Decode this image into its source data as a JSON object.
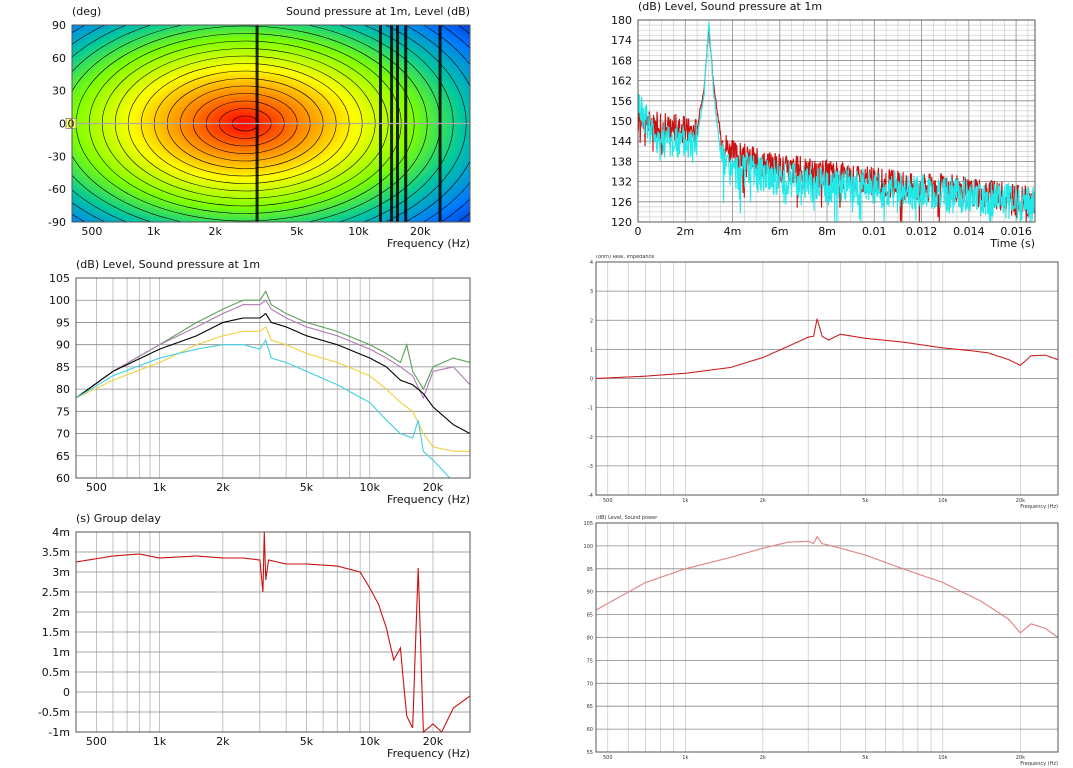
{
  "chart_data": [
    {
      "type": "heatmap",
      "title": "Sound pressure at 1m, Level  (dB)",
      "ylabel": "(deg)",
      "xlabel": "Frequency  (Hz)",
      "x_scale": "log",
      "xlim": [
        400,
        35000
      ],
      "ylim": [
        -90,
        90
      ],
      "x_ticks": [
        {
          "v": 500,
          "label": "500"
        },
        {
          "v": 1000,
          "label": "1k"
        },
        {
          "v": 2000,
          "label": "2k"
        },
        {
          "v": 5000,
          "label": "5k"
        },
        {
          "v": 10000,
          "label": "10k"
        },
        {
          "v": 20000,
          "label": "20k"
        }
      ],
      "y_ticks": [
        {
          "v": 90,
          "label": "90"
        },
        {
          "v": 60,
          "label": "60"
        },
        {
          "v": 30,
          "label": "30"
        },
        {
          "v": 0,
          "label": "0"
        },
        {
          "v": -30,
          "label": "-30"
        },
        {
          "v": -60,
          "label": "-60"
        },
        {
          "v": -90,
          "label": "-90"
        }
      ],
      "cursor": {
        "angle": 0,
        "label": "0"
      },
      "peak": {
        "freq": 2800,
        "angle": 0
      },
      "colors": [
        "#ff0000",
        "#ff8c00",
        "#ffff00",
        "#7fff00",
        "#00c8a0",
        "#0078ff",
        "#0000b4"
      ],
      "dark_bands": [
        3200,
        12800,
        14500,
        15500,
        17000,
        25000
      ]
    },
    {
      "type": "line",
      "title": "(dB)  Level, Sound pressure at 1m",
      "xlabel": "Time  (s)",
      "xlim": [
        0,
        0.0168
      ],
      "ylim": [
        120,
        180
      ],
      "x_ticks": [
        {
          "v": 0,
          "label": "0"
        },
        {
          "v": 0.002,
          "label": "2m"
        },
        {
          "v": 0.004,
          "label": "4m"
        },
        {
          "v": 0.006,
          "label": "6m"
        },
        {
          "v": 0.008,
          "label": "8m"
        },
        {
          "v": 0.01,
          "label": "0.01"
        },
        {
          "v": 0.012,
          "label": "0.012"
        },
        {
          "v": 0.014,
          "label": "0.014"
        },
        {
          "v": 0.016,
          "label": "0.016"
        }
      ],
      "y_ticks": [
        {
          "v": 180,
          "label": "180"
        },
        {
          "v": 174,
          "label": "174"
        },
        {
          "v": 168,
          "label": "168"
        },
        {
          "v": 162,
          "label": "162"
        },
        {
          "v": 156,
          "label": "156"
        },
        {
          "v": 150,
          "label": "150"
        },
        {
          "v": 144,
          "label": "144"
        },
        {
          "v": 138,
          "label": "138"
        },
        {
          "v": 132,
          "label": "132"
        },
        {
          "v": 126,
          "label": "126"
        },
        {
          "v": 120,
          "label": "120"
        }
      ],
      "series": [
        {
          "color": "#cc1111",
          "x": [
            0,
            0.0003,
            0.0006,
            0.001,
            0.0015,
            0.002,
            0.0025,
            0.0028,
            0.003,
            0.0032,
            0.0035,
            0.004,
            0.005,
            0.006,
            0.007,
            0.008,
            0.009,
            0.01,
            0.011,
            0.012,
            0.013,
            0.014,
            0.015,
            0.016,
            0.0168
          ],
          "y": [
            152,
            151,
            150,
            149,
            149,
            148,
            148,
            160,
            178,
            160,
            146,
            141,
            139,
            137,
            136,
            135,
            134,
            133,
            132,
            131,
            131,
            130,
            129,
            128,
            127
          ],
          "noise": 4
        },
        {
          "color": "#22e8e8",
          "x": [
            0,
            0.0003,
            0.0006,
            0.001,
            0.0015,
            0.002,
            0.0025,
            0.0028,
            0.003,
            0.0032,
            0.0035,
            0.004,
            0.005,
            0.006,
            0.007,
            0.008,
            0.009,
            0.01,
            0.011,
            0.012,
            0.013,
            0.014,
            0.015,
            0.016,
            0.0168
          ],
          "y": [
            157,
            152,
            148,
            146,
            145,
            145,
            145,
            158,
            180,
            158,
            140,
            136,
            136,
            134,
            133,
            132,
            132,
            131,
            131,
            130,
            129,
            129,
            128,
            127,
            126
          ],
          "noise": 5
        }
      ]
    },
    {
      "type": "line",
      "title": "(dB)  Level, Sound pressure at 1m",
      "xlabel": "Frequency  (Hz)",
      "x_scale": "log",
      "xlim": [
        400,
        30000
      ],
      "ylim": [
        60,
        105
      ],
      "x_ticks": [
        {
          "v": 500,
          "label": "500"
        },
        {
          "v": 1000,
          "label": "1k"
        },
        {
          "v": 2000,
          "label": "2k"
        },
        {
          "v": 5000,
          "label": "5k"
        },
        {
          "v": 10000,
          "label": "10k"
        },
        {
          "v": 20000,
          "label": "20k"
        }
      ],
      "y_ticks": [
        {
          "v": 105,
          "label": "105"
        },
        {
          "v": 100,
          "label": "100"
        },
        {
          "v": 95,
          "label": "95"
        },
        {
          "v": 90,
          "label": "90"
        },
        {
          "v": 85,
          "label": "85"
        },
        {
          "v": 80,
          "label": "80"
        },
        {
          "v": 75,
          "label": "75"
        },
        {
          "v": 70,
          "label": "70"
        },
        {
          "v": 65,
          "label": "65"
        },
        {
          "v": 60,
          "label": "60"
        }
      ],
      "series": [
        {
          "color": "#5aa05a",
          "x": [
            400,
            600,
            1000,
            1500,
            2000,
            2500,
            3000,
            3200,
            3400,
            4000,
            5000,
            7000,
            10000,
            12000,
            14000,
            15000,
            16000,
            18000,
            20000,
            25000,
            30000
          ],
          "y": [
            78,
            84,
            90,
            95,
            98,
            100,
            100,
            102,
            99,
            97,
            95,
            93,
            90,
            88,
            86,
            90,
            84,
            80,
            85,
            87,
            86
          ]
        },
        {
          "color": "#b07ab0",
          "x": [
            400,
            600,
            1000,
            1500,
            2000,
            2500,
            3000,
            3200,
            3400,
            4000,
            5000,
            7000,
            10000,
            12000,
            14000,
            16000,
            18000,
            20000,
            25000,
            30000
          ],
          "y": [
            78,
            84,
            90,
            94,
            97,
            99,
            99,
            100,
            98,
            96,
            94,
            92,
            89,
            87,
            85,
            83,
            78,
            84,
            85,
            81
          ]
        },
        {
          "color": "#000000",
          "x": [
            400,
            600,
            1000,
            1500,
            2000,
            2500,
            3000,
            3200,
            3400,
            4000,
            5000,
            7000,
            10000,
            12000,
            14000,
            16000,
            18000,
            20000,
            25000,
            30000
          ],
          "y": [
            78,
            84,
            89,
            92,
            95,
            96,
            96,
            97,
            95,
            94,
            92,
            90,
            87,
            85,
            82,
            81,
            79,
            76,
            72,
            70
          ]
        },
        {
          "color": "#f0d040",
          "x": [
            400,
            600,
            1000,
            1500,
            2000,
            2500,
            3000,
            3200,
            3400,
            4000,
            5000,
            7000,
            10000,
            12000,
            14000,
            16000,
            18000,
            20000,
            25000,
            30000
          ],
          "y": [
            78,
            82,
            86,
            90,
            92,
            93,
            93,
            94,
            91,
            90,
            88,
            86,
            83,
            80,
            77,
            75,
            70,
            67,
            66,
            66
          ]
        },
        {
          "color": "#40d0e0",
          "x": [
            400,
            600,
            1000,
            1500,
            2000,
            2500,
            3000,
            3200,
            3400,
            4000,
            5000,
            7000,
            10000,
            12000,
            14000,
            16000,
            17000,
            18000,
            20000,
            22000,
            24000
          ],
          "y": [
            78,
            83,
            87,
            89,
            90,
            90,
            89,
            91,
            87,
            86,
            84,
            81,
            77,
            73,
            70,
            69,
            73,
            66,
            64,
            62,
            60
          ]
        }
      ]
    },
    {
      "type": "line",
      "title": "(ohm)  Real, Impedance",
      "xlabel": "Frequency  (Hz)",
      "x_scale": "log",
      "xlim": [
        450,
        28000
      ],
      "ylim": [
        -4,
        4
      ],
      "x_ticks": [
        {
          "v": 500,
          "label": "500"
        },
        {
          "v": 1000,
          "label": "1k"
        },
        {
          "v": 2000,
          "label": "2k"
        },
        {
          "v": 5000,
          "label": "5k"
        },
        {
          "v": 10000,
          "label": "10k"
        },
        {
          "v": 20000,
          "label": "20k"
        }
      ],
      "y_ticks": [
        {
          "v": 4,
          "label": "4"
        },
        {
          "v": 3,
          "label": "3"
        },
        {
          "v": 2,
          "label": "2"
        },
        {
          "v": 1,
          "label": "1"
        },
        {
          "v": 0,
          "label": "0"
        },
        {
          "v": -1,
          "label": "-1"
        },
        {
          "v": -2,
          "label": "-2"
        },
        {
          "v": -3,
          "label": "-3"
        },
        {
          "v": -4,
          "label": "-4"
        }
      ],
      "series": [
        {
          "color": "#cc2222",
          "x": [
            450,
            700,
            1000,
            1500,
            2000,
            2500,
            3000,
            3150,
            3250,
            3400,
            3600,
            4000,
            5000,
            7000,
            10000,
            13000,
            15000,
            18000,
            20000,
            22000,
            25000,
            28000
          ],
          "y": [
            0.0,
            0.08,
            0.18,
            0.38,
            0.72,
            1.1,
            1.42,
            1.45,
            2.05,
            1.45,
            1.32,
            1.52,
            1.38,
            1.25,
            1.05,
            0.95,
            0.88,
            0.65,
            0.45,
            0.78,
            0.8,
            0.65
          ]
        }
      ]
    },
    {
      "type": "line",
      "title": "(s)  Group delay",
      "xlabel": "Frequency  (Hz)",
      "x_scale": "log",
      "xlim": [
        400,
        30000
      ],
      "ylim": [
        -0.001,
        0.004
      ],
      "x_ticks": [
        {
          "v": 500,
          "label": "500"
        },
        {
          "v": 1000,
          "label": "1k"
        },
        {
          "v": 2000,
          "label": "2k"
        },
        {
          "v": 5000,
          "label": "5k"
        },
        {
          "v": 10000,
          "label": "10k"
        },
        {
          "v": 20000,
          "label": "20k"
        }
      ],
      "y_ticks": [
        {
          "v": 0.004,
          "label": "4m"
        },
        {
          "v": 0.0035,
          "label": "3.5m"
        },
        {
          "v": 0.003,
          "label": "3m"
        },
        {
          "v": 0.0025,
          "label": "2.5m"
        },
        {
          "v": 0.002,
          "label": "2m"
        },
        {
          "v": 0.0015,
          "label": "1.5m"
        },
        {
          "v": 0.001,
          "label": "1m"
        },
        {
          "v": 0.0005,
          "label": "0.5m"
        },
        {
          "v": 0,
          "label": "0"
        },
        {
          "v": -0.0005,
          "label": "-0.5m"
        },
        {
          "v": -0.001,
          "label": "-1m"
        }
      ],
      "series": [
        {
          "color": "#cc1111",
          "x": [
            400,
            600,
            800,
            1000,
            1500,
            2000,
            2500,
            3000,
            3100,
            3150,
            3200,
            3300,
            4000,
            5000,
            7000,
            9000,
            10000,
            11000,
            12000,
            13000,
            14000,
            14500,
            15000,
            16000,
            17000,
            18000,
            19000,
            20000,
            22000,
            25000,
            30000
          ],
          "y": [
            0.00325,
            0.0034,
            0.00345,
            0.00335,
            0.0034,
            0.00335,
            0.00335,
            0.0033,
            0.0025,
            0.004,
            0.0028,
            0.0033,
            0.0032,
            0.0032,
            0.00315,
            0.003,
            0.0026,
            0.0022,
            0.0016,
            0.0008,
            0.0011,
            0.0002,
            -0.0006,
            -0.0009,
            0.0031,
            -0.001,
            -0.0009,
            -0.0008,
            -0.001,
            -0.0004,
            -0.0001
          ]
        }
      ]
    },
    {
      "type": "line",
      "title": "(dB)  Level, Sound power",
      "xlabel": "Frequency  (Hz)",
      "x_scale": "log",
      "xlim": [
        450,
        28000
      ],
      "ylim": [
        55,
        105
      ],
      "x_ticks": [
        {
          "v": 500,
          "label": "500"
        },
        {
          "v": 1000,
          "label": "1k"
        },
        {
          "v": 2000,
          "label": "2k"
        },
        {
          "v": 5000,
          "label": "5k"
        },
        {
          "v": 10000,
          "label": "10k"
        },
        {
          "v": 20000,
          "label": "20k"
        }
      ],
      "y_ticks": [
        {
          "v": 105,
          "label": "105"
        },
        {
          "v": 100,
          "label": "100"
        },
        {
          "v": 95,
          "label": "95"
        },
        {
          "v": 90,
          "label": "90"
        },
        {
          "v": 85,
          "label": "85"
        },
        {
          "v": 80,
          "label": "80"
        },
        {
          "v": 75,
          "label": "75"
        },
        {
          "v": 70,
          "label": "70"
        },
        {
          "v": 65,
          "label": "65"
        },
        {
          "v": 60,
          "label": "60"
        },
        {
          "v": 55,
          "label": "55"
        }
      ],
      "series": [
        {
          "color": "#e08080",
          "x": [
            450,
            700,
            1000,
            1500,
            2000,
            2500,
            3000,
            3150,
            3250,
            3400,
            4000,
            5000,
            7000,
            10000,
            14000,
            18000,
            20000,
            22000,
            25000,
            28000
          ],
          "y": [
            86,
            92,
            95,
            97.5,
            99.5,
            100.8,
            101,
            100.5,
            102,
            100.5,
            99.5,
            98,
            95,
            92,
            88,
            84,
            81,
            83,
            82,
            80
          ]
        }
      ]
    }
  ]
}
